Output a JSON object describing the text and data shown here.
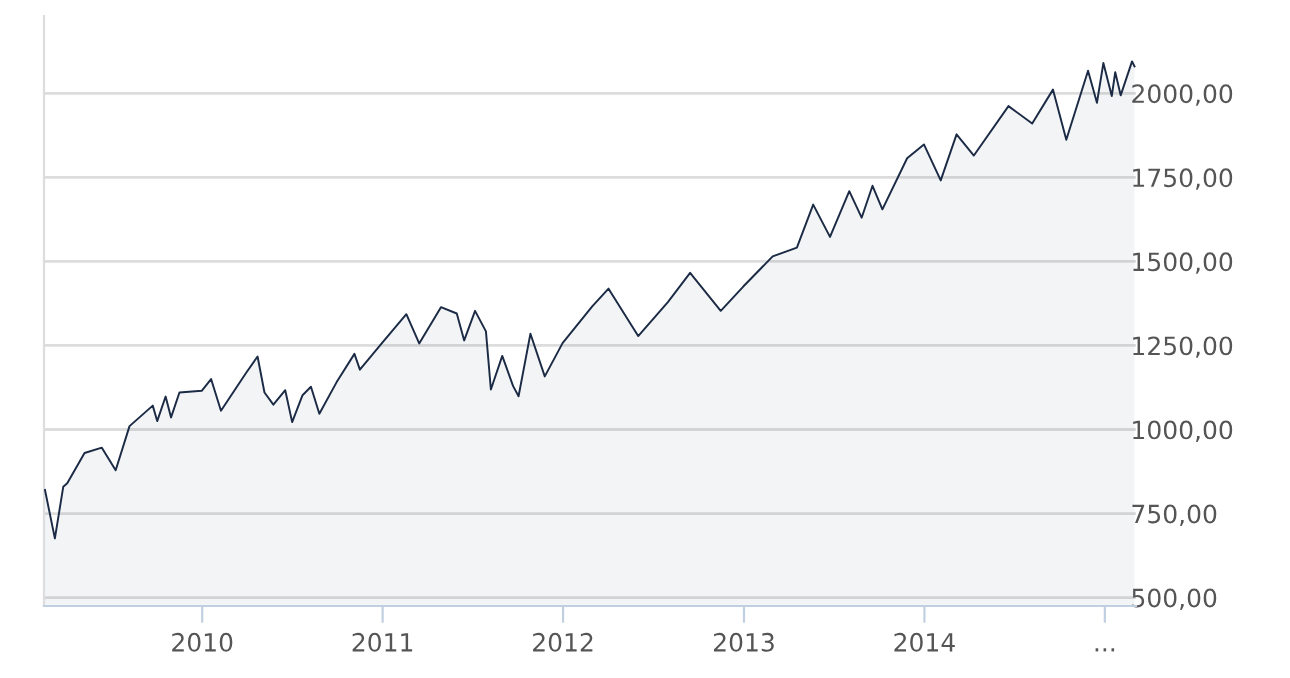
{
  "chart_data": {
    "type": "area",
    "color": "#1c2b45",
    "grid": "y",
    "x": [
      "2009-02-17",
      "2009-03-09",
      "2009-03-26",
      "2009-04-03",
      "2009-05-08",
      "2009-06-12",
      "2009-07-10",
      "2009-08-07",
      "2009-09-23",
      "2009-10-02",
      "2009-10-19",
      "2009-10-30",
      "2009-11-16",
      "2009-12-31",
      "2010-01-19",
      "2010-02-08",
      "2010-03-31",
      "2010-04-23",
      "2010-05-07",
      "2010-05-25",
      "2010-06-18",
      "2010-07-02",
      "2010-07-23",
      "2010-08-09",
      "2010-08-26",
      "2010-09-30",
      "2010-11-05",
      "2010-11-16",
      "2010-12-31",
      "2011-02-18",
      "2011-03-16",
      "2011-04-29",
      "2011-05-31",
      "2011-06-15",
      "2011-07-07",
      "2011-07-29",
      "2011-08-08",
      "2011-08-31",
      "2011-09-22",
      "2011-10-03",
      "2011-10-27",
      "2011-11-25",
      "2011-12-31",
      "2012-02-29",
      "2012-04-02",
      "2012-06-01",
      "2012-07-31",
      "2012-09-14",
      "2012-11-15",
      "2012-12-31",
      "2013-02-28",
      "2013-04-18",
      "2013-05-21",
      "2013-06-24",
      "2013-08-02",
      "2013-08-27",
      "2013-09-18",
      "2013-10-08",
      "2013-11-27",
      "2013-12-31",
      "2014-02-03",
      "2014-03-07",
      "2014-04-11",
      "2014-06-20",
      "2014-08-07",
      "2014-09-18",
      "2014-10-15",
      "2014-11-28",
      "2014-12-16",
      "2014-12-29",
      "2015-01-15",
      "2015-01-22",
      "2015-02-02",
      "2015-02-25",
      "2015-03-02"
    ],
    "values": [
      820,
      676,
      830,
      840,
      930,
      946,
      879,
      1010,
      1071,
      1025,
      1098,
      1036,
      1110,
      1115,
      1150,
      1056,
      1169,
      1217,
      1110,
      1074,
      1117,
      1022,
      1102,
      1127,
      1047,
      1141,
      1225,
      1178,
      1258,
      1343,
      1256,
      1364,
      1345,
      1265,
      1353,
      1292,
      1119,
      1219,
      1129,
      1099,
      1285,
      1158,
      1257,
      1366,
      1419,
      1278,
      1379,
      1466,
      1353,
      1426,
      1515,
      1541,
      1669,
      1573,
      1709,
      1630,
      1725,
      1655,
      1807,
      1848,
      1741,
      1878,
      1815,
      1962,
      1910,
      2011,
      1862,
      2067,
      1972,
      2090,
      1992,
      2063,
      1994,
      2095,
      2080
    ],
    "xlim": [
      "2009-02-15",
      "2015-03-05"
    ],
    "xticks": [
      "2010",
      "2011",
      "2012",
      "2013",
      "2014",
      {
        "value": "2015",
        "label": "..."
      }
    ],
    "ylim": [
      475,
      2230
    ],
    "yticks": [
      {
        "value": 500,
        "label": "500,00"
      },
      {
        "value": 750,
        "label": "750,00"
      },
      {
        "value": 1000,
        "label": "1000,00"
      },
      {
        "value": 1250,
        "label": "1250,00"
      },
      {
        "value": 1500,
        "label": "1500,00"
      },
      {
        "value": 1750,
        "label": "1750,00"
      },
      {
        "value": 2000,
        "label": "2000,00"
      }
    ]
  }
}
